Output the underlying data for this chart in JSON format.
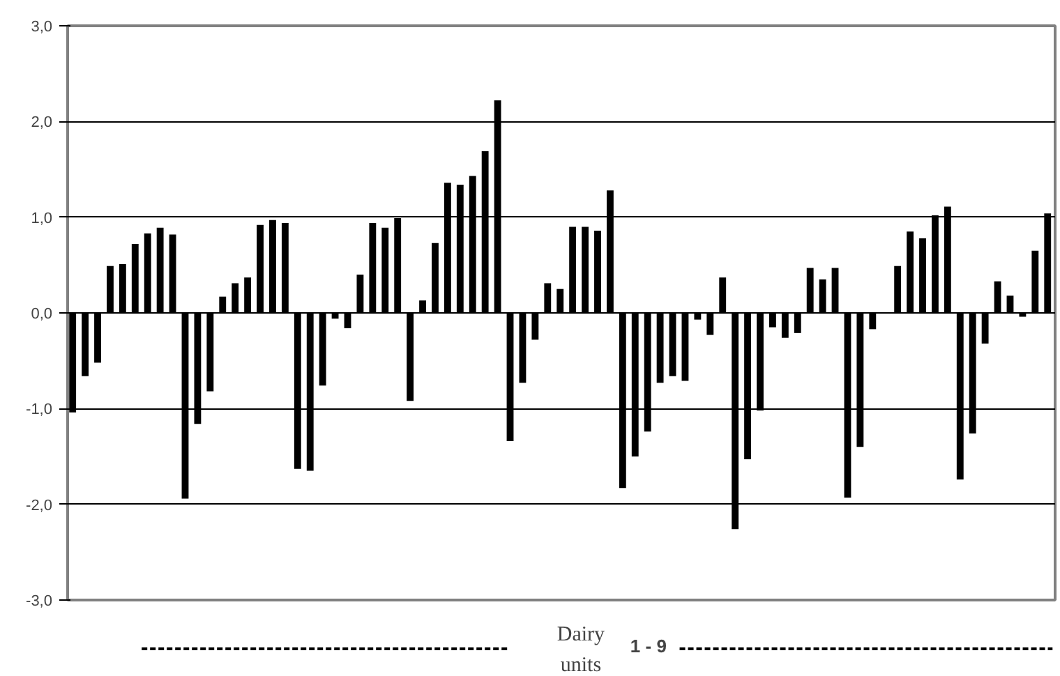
{
  "chart_data": {
    "type": "bar",
    "xlabel": "Dairy units",
    "annotations": [
      "1 - 9"
    ],
    "categories": [
      null,
      null,
      null,
      null,
      null,
      null,
      null,
      null,
      null,
      null,
      null,
      null,
      null,
      null,
      null,
      null,
      null,
      null,
      null,
      null,
      null,
      null,
      null,
      null,
      null,
      null,
      null,
      null,
      null,
      null,
      null,
      null,
      null,
      null,
      null,
      null,
      null,
      null,
      null,
      null,
      null,
      null,
      null,
      null,
      null,
      null,
      null,
      null,
      null,
      null,
      null,
      null,
      null,
      null,
      null,
      null,
      null,
      null,
      null,
      null,
      null,
      null,
      null,
      null,
      null,
      null,
      null,
      null,
      null,
      null,
      null,
      null,
      null,
      null,
      null,
      null,
      null,
      null,
      null
    ],
    "series": [
      {
        "color": "#000000",
        "values": [
          -1.04,
          -0.66,
          -0.52,
          0.49,
          0.51,
          0.72,
          0.83,
          0.89,
          0.82,
          -1.94,
          -1.16,
          -0.82,
          0.17,
          0.31,
          0.37,
          0.92,
          0.97,
          0.94,
          -1.63,
          -1.65,
          -0.76,
          -0.06,
          -0.16,
          0.4,
          0.94,
          0.89,
          0.99,
          -0.92,
          0.13,
          0.73,
          1.36,
          1.34,
          1.43,
          1.69,
          2.22,
          -1.34,
          -0.73,
          -0.28,
          0.31,
          0.25,
          0.9,
          0.9,
          0.86,
          1.28,
          -1.83,
          -1.5,
          -1.24,
          -0.73,
          -0.66,
          -0.71,
          -0.07,
          -0.23,
          0.37,
          -2.26,
          -1.53,
          -1.02,
          -0.15,
          -0.26,
          -0.21,
          0.47,
          0.35,
          0.47,
          -1.93,
          -1.4,
          -0.17,
          0,
          0.49,
          0.85,
          0.78,
          1.02,
          1.11,
          -1.74,
          -1.26,
          -0.32,
          0.33,
          0.18,
          -0.04,
          0.65,
          1.04
        ]
      }
    ],
    "ylim": [
      -3,
      3
    ],
    "yticks": [
      {
        "value": -3,
        "label": "-3,0"
      },
      {
        "value": -2,
        "label": "-2,0"
      },
      {
        "value": -1,
        "label": "-1,0"
      },
      {
        "value": 0,
        "label": "0,0"
      },
      {
        "value": 1,
        "label": "1,0"
      },
      {
        "value": 2,
        "label": "2,0"
      },
      {
        "value": 3,
        "label": "3,0"
      }
    ],
    "grid": "y",
    "tick_labels": "y"
  }
}
